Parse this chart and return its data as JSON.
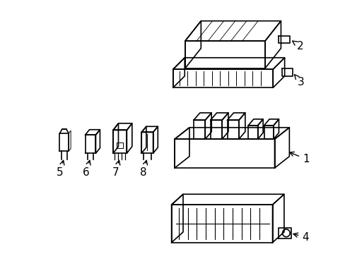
{
  "background_color": "#ffffff",
  "line_color": "#000000",
  "line_width": 1.2,
  "figsize": [
    4.89,
    3.6
  ],
  "dpi": 100,
  "xlim": [
    0,
    4.89
  ],
  "ylim": [
    -1.1,
    3.7
  ]
}
